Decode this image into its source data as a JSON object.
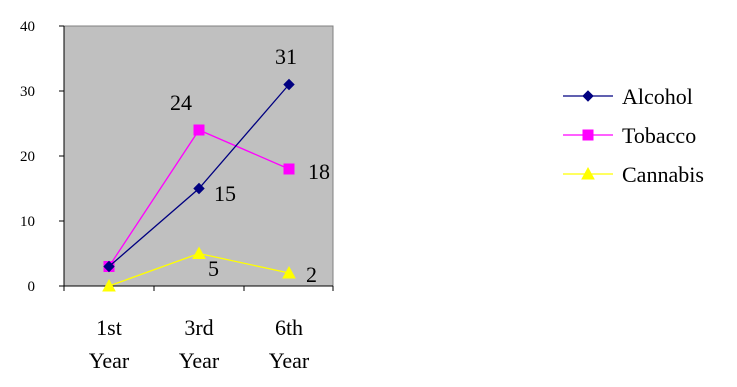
{
  "chart_data": {
    "type": "line",
    "categories": [
      [
        "1st",
        "Year"
      ],
      [
        "3rd",
        "Year"
      ],
      [
        "6th",
        "Year"
      ]
    ],
    "ylim": [
      0,
      40
    ],
    "yticks": [
      0,
      10,
      20,
      30,
      40
    ],
    "grid": false,
    "plot_background": "#c0c0c0",
    "legend_position": "right",
    "series": [
      {
        "name": "Alcohol",
        "values": [
          3,
          15,
          31
        ],
        "color": "#000080",
        "marker": "diamond",
        "labels": [
          null,
          "15",
          "31"
        ]
      },
      {
        "name": "Tobacco",
        "values": [
          3,
          24,
          18
        ],
        "color": "#ff00ff",
        "marker": "square",
        "labels": [
          null,
          "24",
          "18"
        ]
      },
      {
        "name": "Cannabis",
        "values": [
          0,
          5,
          2
        ],
        "color": "#ffff00",
        "marker": "triangle",
        "labels": [
          null,
          "5",
          "2"
        ]
      }
    ]
  }
}
